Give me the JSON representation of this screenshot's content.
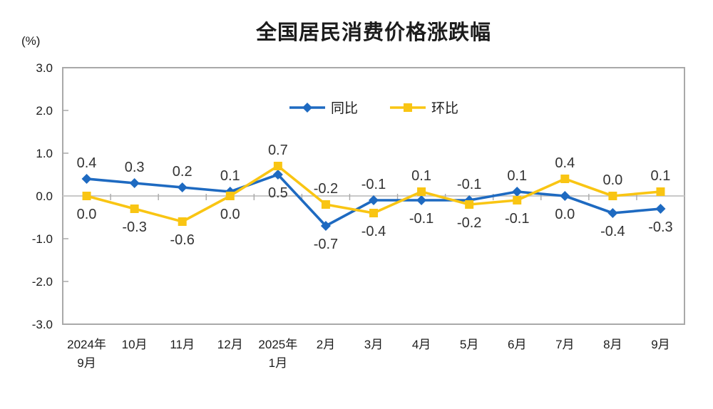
{
  "title": "全国居民消费价格涨跌幅",
  "y_axis_unit": "(%)",
  "colors": {
    "yoy_blue": "#1E6AC1",
    "mom_yellow": "#F9C513",
    "axis_gray": "#A9A9A9",
    "zero_line_gray": "#C9C9C9",
    "label_dark": "#333333",
    "tick_text": "#1c1c1c"
  },
  "chart_data": {
    "type": "line",
    "title": "全国居民消费价格涨跌幅",
    "xlabel": "",
    "ylabel": "(%)",
    "categories": [
      "2024年\n9月",
      "10月",
      "11月",
      "12月",
      "2025年\n1月",
      "2月",
      "3月",
      "4月",
      "5月",
      "6月",
      "7月",
      "8月",
      "9月"
    ],
    "series": [
      {
        "id": "yoy",
        "name": "同比",
        "marker": "diamond",
        "color": "#1E6AC1",
        "values": [
          0.4,
          0.3,
          0.2,
          0.1,
          0.5,
          -0.7,
          -0.1,
          -0.1,
          -0.1,
          0.1,
          0.0,
          -0.4,
          -0.3
        ]
      },
      {
        "id": "mom",
        "name": "环比",
        "marker": "square",
        "color": "#F9C513",
        "values": [
          0.0,
          -0.3,
          -0.6,
          0.0,
          0.7,
          -0.2,
          -0.4,
          0.1,
          -0.2,
          -0.1,
          0.4,
          0.0,
          0.1
        ]
      }
    ],
    "ylim": [
      -3.0,
      3.0
    ],
    "y_ticks": [
      3.0,
      2.0,
      1.0,
      0.0,
      -1.0,
      -2.0,
      -3.0
    ],
    "grid": false,
    "legend_position": "top-center",
    "data_labels": true
  }
}
